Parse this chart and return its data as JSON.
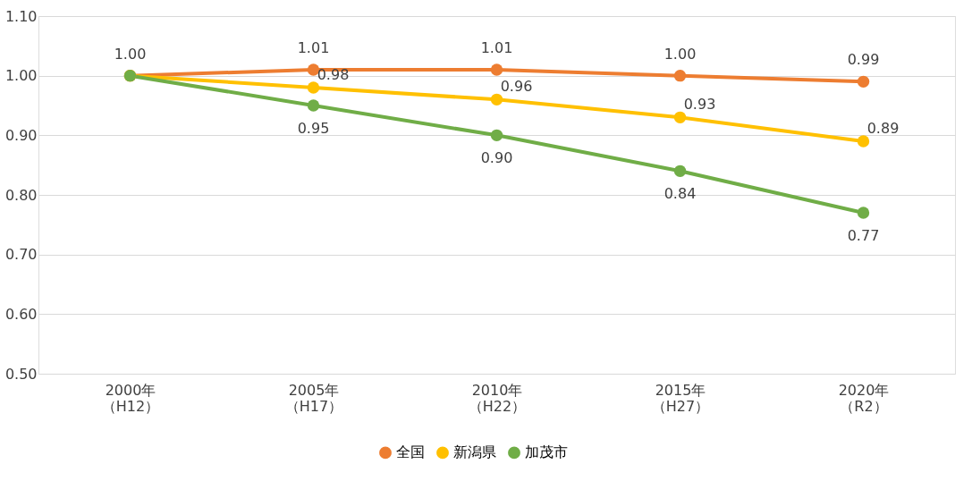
{
  "chart_data": {
    "type": "line",
    "categories": [
      "2000年（H12）",
      "2005年（H17）",
      "2010年（H22）",
      "2015年（H27）",
      "2020年（R2）"
    ],
    "series": [
      {
        "name": "全国",
        "color": "#ed7d31",
        "values": [
          1.0,
          1.01,
          1.01,
          1.0,
          0.99
        ],
        "value_labels": [
          "1.00",
          "1.01",
          "1.01",
          "1.00",
          "0.99"
        ]
      },
      {
        "name": "新潟県",
        "color": "#ffc000",
        "values": [
          1.0,
          0.98,
          0.96,
          0.93,
          0.89
        ],
        "value_labels": [
          null,
          "0.98",
          "0.96",
          "0.93",
          "0.89"
        ]
      },
      {
        "name": "加茂市",
        "color": "#70ad47",
        "values": [
          1.0,
          0.95,
          0.9,
          0.84,
          0.77
        ],
        "value_labels": [
          null,
          "0.95",
          "0.90",
          "0.84",
          "0.77"
        ]
      }
    ],
    "ylim": [
      0.5,
      1.1
    ],
    "yticks": [
      {
        "value": 0.5,
        "label": "0.50"
      },
      {
        "value": 0.6,
        "label": "0.60"
      },
      {
        "value": 0.7,
        "label": "0.70"
      },
      {
        "value": 0.8,
        "label": "0.80"
      },
      {
        "value": 0.9,
        "label": "0.90"
      },
      {
        "value": 1.0,
        "label": "1.00"
      },
      {
        "value": 1.1,
        "label": "1.10"
      }
    ],
    "grid": "y",
    "legend": "bottom",
    "marker": "circle",
    "line_style": "solid"
  }
}
